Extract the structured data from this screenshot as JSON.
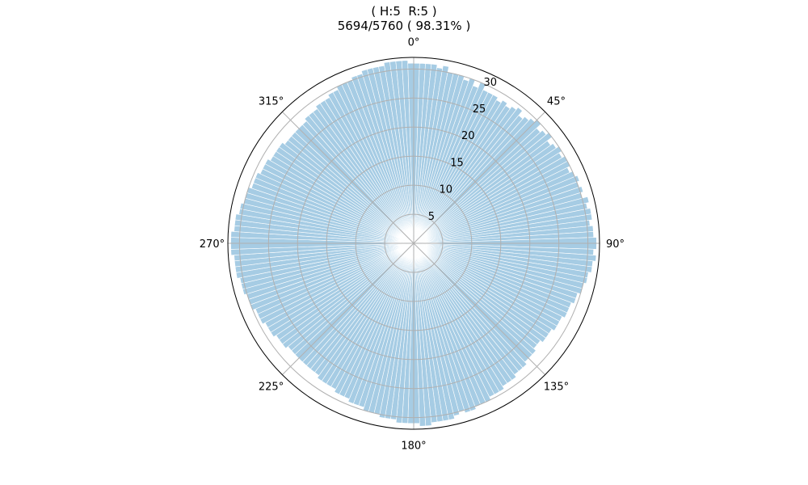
{
  "chart_data": {
    "type": "polar-bar",
    "title": "( H:5  R:5 )",
    "subtitle": "5694/5760 ( 98.31% )",
    "theta_direction": "clockwise",
    "theta_zero": "top",
    "theta_tick_labels": [
      "0°",
      "45°",
      "90°",
      "135°",
      "180°",
      "225°",
      "270°",
      "315°"
    ],
    "theta_tick_degrees": [
      0,
      45,
      90,
      135,
      180,
      225,
      270,
      315
    ],
    "r_ticks": [
      5,
      10,
      15,
      20,
      25,
      30
    ],
    "r_tick_labels": [
      "5",
      "10",
      "15",
      "20",
      "25",
      "30"
    ],
    "rlim": [
      0,
      32
    ],
    "bin_count": 192,
    "bin_width_degrees": 1.875,
    "bar_color": "#a6cce4",
    "grid_color": "#b0b0b0",
    "values": [
      31,
      31,
      31,
      31,
      30.5,
      31,
      30,
      30,
      30,
      29.5,
      30,
      29,
      30,
      29,
      29,
      29,
      28.5,
      29,
      28.5,
      29,
      29.5,
      28.5,
      29,
      29.5,
      30,
      29,
      29.5,
      30,
      29,
      29.5,
      30,
      29.5,
      30,
      30,
      29.5,
      30,
      30.5,
      30,
      30.5,
      30,
      31,
      30.5,
      31,
      31,
      30.5,
      31,
      31,
      31.5,
      31.5,
      31,
      31.5,
      31,
      31,
      30.5,
      30.5,
      30,
      30,
      29.5,
      29.5,
      29,
      29,
      29,
      28.5,
      28.5,
      28.5,
      28,
      28,
      28,
      27.5,
      27.5,
      28,
      28,
      28,
      28.5,
      28.5,
      28.5,
      29,
      29,
      29,
      29.5,
      29.5,
      29.5,
      30,
      30,
      30,
      30.5,
      30.5,
      30,
      30.5,
      31,
      31,
      31,
      31,
      31.5,
      31.5,
      31,
      31,
      31,
      31,
      30.5,
      30.5,
      30.5,
      30,
      30,
      30,
      29.5,
      29.5,
      29.5,
      29,
      29,
      29,
      28.5,
      28.5,
      28.5,
      28.5,
      28,
      28,
      28,
      28,
      28,
      28,
      28,
      28,
      28.5,
      28.5,
      28.5,
      29,
      29,
      29,
      29.5,
      29.5,
      29.5,
      30,
      30,
      30,
      30.5,
      30.5,
      30.5,
      31,
      31,
      31,
      31,
      31.5,
      31.5,
      31.5,
      31.5,
      31,
      31,
      31,
      30.5,
      30.5,
      30,
      30,
      30,
      29.5,
      29.5,
      29.5,
      29,
      29,
      29,
      28.5,
      28.5,
      28.5,
      28.5,
      28,
      28,
      28,
      28,
      28,
      28,
      28.5,
      28.5,
      28.5,
      29,
      29,
      29,
      29.5,
      29.5,
      30,
      30,
      30,
      30.5,
      30.5,
      31,
      31,
      31,
      31,
      31.5,
      31.5,
      31.5,
      31.5,
      31
    ]
  }
}
